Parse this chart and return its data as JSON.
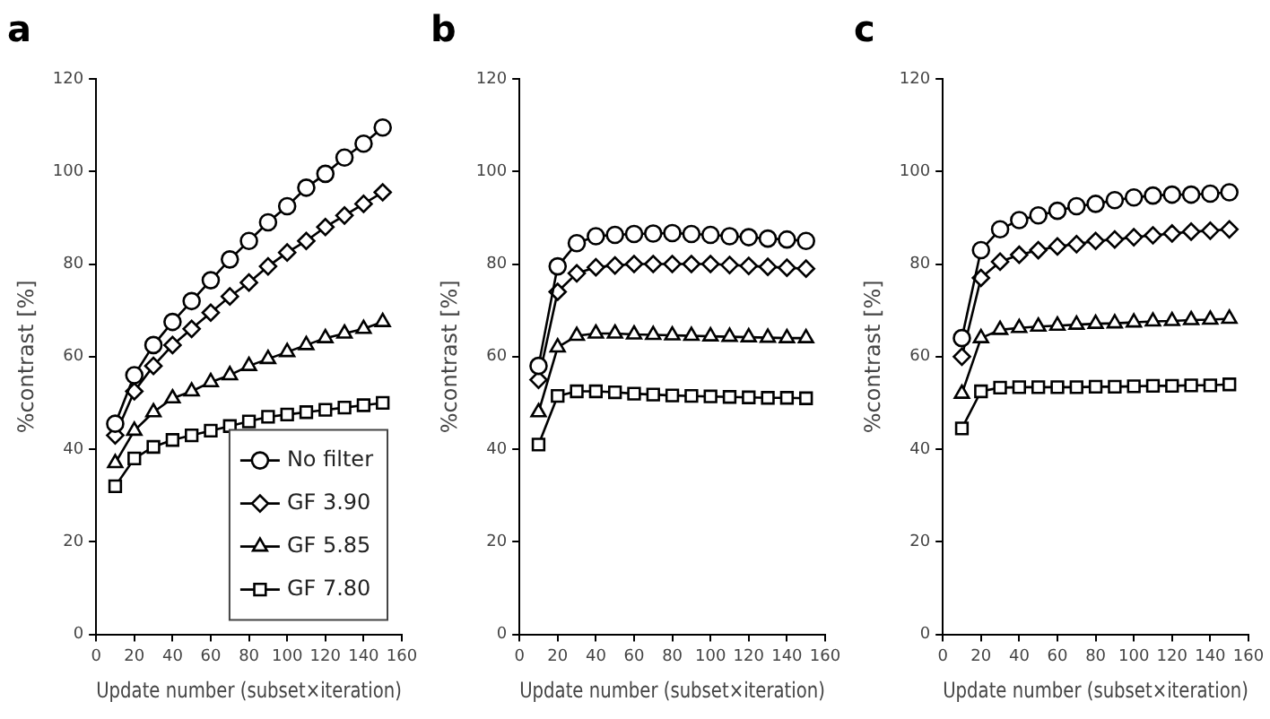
{
  "chart_data": [
    {
      "type": "line",
      "title": "a",
      "xlabel": "Update number (subset×iteration)",
      "ylabel": "%contrast [%]",
      "x": [
        10,
        20,
        30,
        40,
        50,
        60,
        70,
        80,
        90,
        100,
        110,
        120,
        130,
        140,
        150
      ],
      "xlim": [
        0,
        160
      ],
      "xticks": [
        0,
        20,
        40,
        60,
        80,
        100,
        120,
        140,
        160
      ],
      "ylim": [
        0,
        120
      ],
      "yticks": [
        0,
        20,
        40,
        60,
        80,
        100,
        120
      ],
      "grid": false,
      "legend": "bottom right",
      "line_style": "solid",
      "series": [
        {
          "name": "No filter",
          "color": "#000000",
          "marker": "circle",
          "values": [
            45.5,
            56,
            62.5,
            67.5,
            72,
            76.5,
            81,
            85,
            89,
            92.5,
            96.5,
            99.5,
            103,
            106,
            109.5
          ]
        },
        {
          "name": "GF 3.90",
          "color": "#000000",
          "marker": "diamond",
          "values": [
            43,
            52.5,
            58,
            62.5,
            66,
            69.5,
            73,
            76,
            79.5,
            82.5,
            85,
            88,
            90.5,
            93,
            95.5
          ]
        },
        {
          "name": "GF 5.85",
          "color": "#000000",
          "marker": "triangle",
          "values": [
            37,
            44,
            48,
            51,
            52.5,
            54.5,
            56,
            58,
            59.5,
            61,
            62.5,
            64,
            65,
            66,
            67.5
          ]
        },
        {
          "name": "GF 7.80",
          "color": "#000000",
          "marker": "square",
          "values": [
            32,
            38,
            40.5,
            42,
            43,
            44,
            45,
            46,
            47,
            47.5,
            48,
            48.5,
            49,
            49.5,
            50
          ]
        }
      ]
    },
    {
      "type": "line",
      "title": "b",
      "xlabel": "Update number (subset×iteration)",
      "ylabel": "%contrast [%]",
      "x": [
        10,
        20,
        30,
        40,
        50,
        60,
        70,
        80,
        90,
        100,
        110,
        120,
        130,
        140,
        150
      ],
      "xlim": [
        0,
        160
      ],
      "xticks": [
        0,
        20,
        40,
        60,
        80,
        100,
        120,
        140,
        160
      ],
      "ylim": [
        0,
        120
      ],
      "yticks": [
        0,
        20,
        40,
        60,
        80,
        100,
        120
      ],
      "grid": false,
      "line_style": "solid",
      "series": [
        {
          "color": "#000000",
          "marker": "circle",
          "values": [
            58,
            79.5,
            84.5,
            86,
            86.3,
            86.5,
            86.6,
            86.7,
            86.5,
            86.3,
            86,
            85.8,
            85.5,
            85.3,
            85
          ]
        },
        {
          "color": "#000000",
          "marker": "diamond",
          "values": [
            55,
            74,
            78,
            79.3,
            79.7,
            80,
            80,
            80,
            80,
            80,
            79.8,
            79.6,
            79.4,
            79.2,
            79
          ]
        },
        {
          "color": "#000000",
          "marker": "triangle",
          "values": [
            48,
            62,
            64.5,
            65,
            65,
            64.8,
            64.7,
            64.6,
            64.5,
            64.4,
            64.3,
            64.2,
            64.1,
            64,
            64
          ]
        },
        {
          "color": "#000000",
          "marker": "square",
          "values": [
            41,
            51.5,
            52.5,
            52.5,
            52.3,
            52,
            51.8,
            51.6,
            51.5,
            51.4,
            51.3,
            51.2,
            51.1,
            51.1,
            51
          ]
        }
      ]
    },
    {
      "type": "line",
      "title": "c",
      "xlabel": "Update number (subset×iteration)",
      "ylabel": "%contrast [%]",
      "x": [
        10,
        20,
        30,
        40,
        50,
        60,
        70,
        80,
        90,
        100,
        110,
        120,
        130,
        140,
        150
      ],
      "xlim": [
        0,
        160
      ],
      "xticks": [
        0,
        20,
        40,
        60,
        80,
        100,
        120,
        140,
        160
      ],
      "ylim": [
        0,
        120
      ],
      "yticks": [
        0,
        20,
        40,
        60,
        80,
        100,
        120
      ],
      "grid": false,
      "line_style": "solid",
      "series": [
        {
          "color": "#000000",
          "marker": "circle",
          "values": [
            64,
            83,
            87.5,
            89.5,
            90.5,
            91.5,
            92.5,
            93,
            93.8,
            94.4,
            94.8,
            95,
            95,
            95.2,
            95.5
          ]
        },
        {
          "color": "#000000",
          "marker": "diamond",
          "values": [
            60,
            77,
            80.5,
            82,
            83,
            83.8,
            84.3,
            85,
            85.3,
            85.8,
            86.2,
            86.6,
            87,
            87.2,
            87.5
          ]
        },
        {
          "color": "#000000",
          "marker": "triangle",
          "values": [
            52,
            64,
            65.8,
            66.2,
            66.5,
            66.7,
            66.9,
            67.1,
            67.2,
            67.4,
            67.6,
            67.7,
            67.9,
            68,
            68.2
          ]
        },
        {
          "color": "#000000",
          "marker": "square",
          "values": [
            44.5,
            52.5,
            53.3,
            53.4,
            53.4,
            53.4,
            53.4,
            53.5,
            53.5,
            53.6,
            53.7,
            53.7,
            53.8,
            53.8,
            54
          ]
        }
      ]
    }
  ]
}
